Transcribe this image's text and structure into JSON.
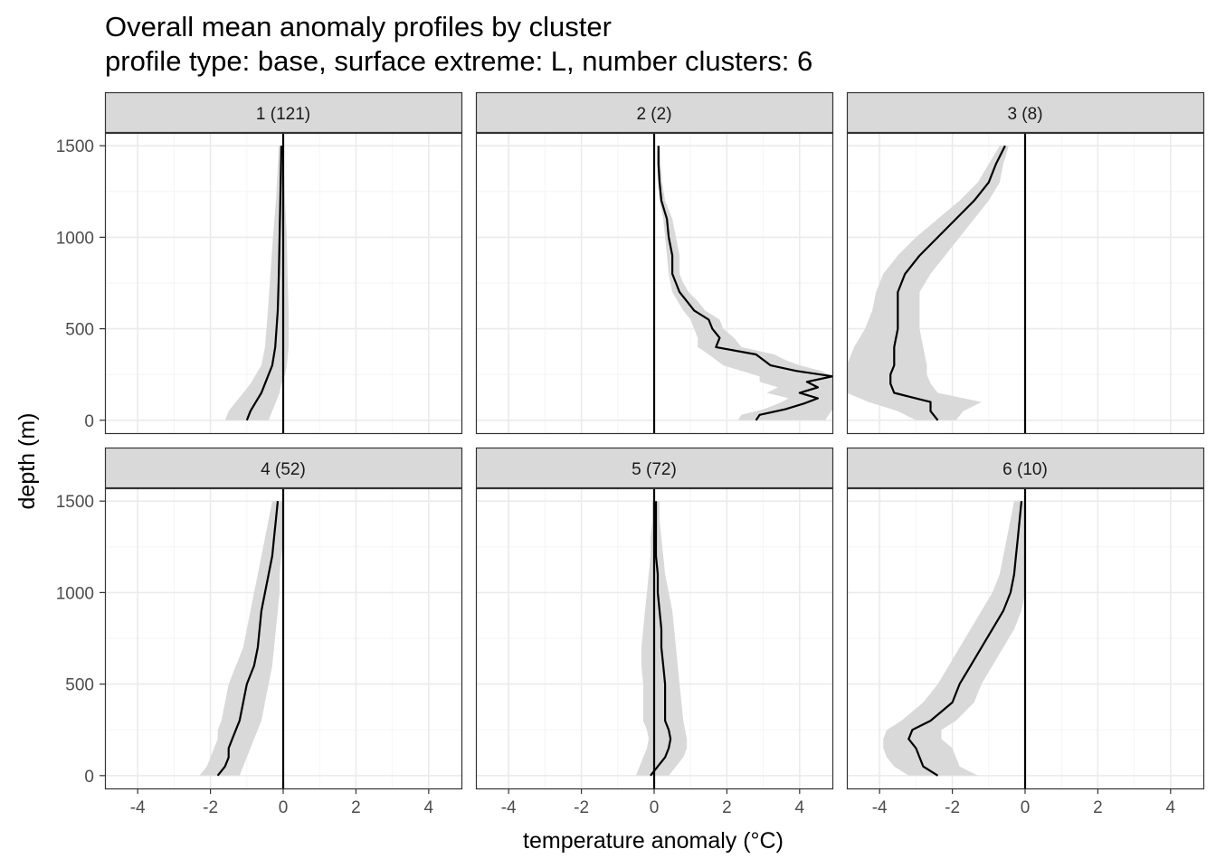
{
  "chart_data": {
    "type": "line",
    "title": "Overall mean anomaly profiles by cluster",
    "subtitle": "profile type: base, surface extreme: L, number clusters: 6",
    "xlabel": "temperature anomaly (°C)",
    "ylabel": "depth (m)",
    "xlim": [
      -4.9,
      4.9
    ],
    "ylim": [
      1570,
      -70
    ],
    "x_reversed": false,
    "y_reversed": true,
    "x_ticks": [
      -4,
      -2,
      0,
      2,
      4
    ],
    "x_tick_labels": [
      "-4",
      "-2",
      "0",
      "2",
      "4"
    ],
    "y_ticks": [
      0,
      500,
      1000,
      1500
    ],
    "y_tick_labels": [
      "0",
      "500",
      "1000",
      "1500"
    ],
    "grid": true,
    "vline_x": 0,
    "colors": {
      "line": "#000000",
      "ribbon": "#d9d9d9",
      "strip": "#d9d9d9",
      "grid_major": "#ebebeb",
      "grid_minor": "#f5f5f5",
      "border": "#333333"
    },
    "panels": [
      {
        "label": "1 (121)",
        "depth": [
          0,
          50,
          100,
          150,
          200,
          250,
          300,
          400,
          600,
          800,
          1000,
          1200,
          1500
        ],
        "mean": [
          -1.0,
          -0.9,
          -0.75,
          -0.6,
          -0.5,
          -0.4,
          -0.3,
          -0.22,
          -0.15,
          -0.12,
          -0.1,
          -0.08,
          -0.05
        ],
        "lower": [
          -1.6,
          -1.5,
          -1.3,
          -1.1,
          -0.9,
          -0.75,
          -0.6,
          -0.5,
          -0.42,
          -0.35,
          -0.28,
          -0.2,
          -0.12
        ],
        "upper": [
          -0.4,
          -0.3,
          -0.2,
          -0.1,
          -0.05,
          0.05,
          0.1,
          0.15,
          0.15,
          0.12,
          0.1,
          0.05,
          0.0
        ]
      },
      {
        "label": "2 (2)",
        "depth": [
          0,
          30,
          60,
          90,
          120,
          150,
          180,
          210,
          240,
          270,
          300,
          330,
          360,
          400,
          450,
          500,
          550,
          600,
          650,
          700,
          750,
          800,
          900,
          1000,
          1100,
          1200,
          1300,
          1400,
          1500
        ],
        "mean": [
          2.8,
          2.9,
          3.6,
          4.1,
          4.5,
          4.0,
          4.5,
          4.2,
          4.9,
          3.9,
          3.2,
          3.0,
          2.8,
          1.7,
          1.8,
          1.6,
          1.5,
          1.1,
          0.9,
          0.7,
          0.6,
          0.5,
          0.5,
          0.4,
          0.35,
          0.2,
          0.15,
          0.12,
          0.12
        ],
        "lower": [
          2.3,
          2.4,
          3.0,
          3.4,
          3.7,
          3.1,
          3.4,
          2.9,
          2.9,
          2.4,
          1.9,
          1.7,
          1.5,
          1.2,
          1.2,
          1.1,
          1.0,
          0.8,
          0.65,
          0.5,
          0.45,
          0.4,
          0.35,
          0.3,
          0.25,
          0.15,
          0.1,
          0.08,
          0.08
        ],
        "upper": [
          4.7,
          4.8,
          4.9,
          4.9,
          4.9,
          4.9,
          4.9,
          4.9,
          4.9,
          4.6,
          4.0,
          3.6,
          3.3,
          2.4,
          2.2,
          1.9,
          1.8,
          1.4,
          1.2,
          0.95,
          0.8,
          0.7,
          0.7,
          0.6,
          0.5,
          0.3,
          0.22,
          0.18,
          0.16
        ]
      },
      {
        "label": "3 (8)",
        "depth": [
          0,
          50,
          100,
          150,
          200,
          250,
          300,
          400,
          500,
          600,
          700,
          800,
          900,
          1000,
          1100,
          1200,
          1300,
          1400,
          1500
        ],
        "mean": [
          -2.4,
          -2.6,
          -2.6,
          -3.6,
          -3.7,
          -3.7,
          -3.6,
          -3.6,
          -3.5,
          -3.5,
          -3.5,
          -3.3,
          -2.9,
          -2.4,
          -1.9,
          -1.4,
          -1.0,
          -0.8,
          -0.55
        ],
        "lower": [
          -3.0,
          -3.5,
          -4.3,
          -4.9,
          -4.9,
          -4.9,
          -4.9,
          -4.7,
          -4.4,
          -4.2,
          -4.1,
          -3.9,
          -3.5,
          -3.0,
          -2.4,
          -1.8,
          -1.3,
          -1.0,
          -0.7
        ],
        "upper": [
          -1.9,
          -1.7,
          -1.2,
          -2.4,
          -2.6,
          -2.7,
          -2.7,
          -2.8,
          -2.9,
          -2.9,
          -2.9,
          -2.6,
          -2.2,
          -1.8,
          -1.4,
          -1.0,
          -0.7,
          -0.6,
          -0.45
        ]
      },
      {
        "label": "4 (52)",
        "depth": [
          0,
          50,
          100,
          150,
          200,
          250,
          300,
          400,
          500,
          600,
          700,
          800,
          900,
          1000,
          1100,
          1200,
          1300,
          1400,
          1500
        ],
        "mean": [
          -1.8,
          -1.6,
          -1.5,
          -1.5,
          -1.4,
          -1.3,
          -1.2,
          -1.1,
          -1.0,
          -0.8,
          -0.7,
          -0.65,
          -0.6,
          -0.5,
          -0.4,
          -0.3,
          -0.25,
          -0.2,
          -0.15
        ],
        "lower": [
          -2.3,
          -2.1,
          -2.0,
          -1.9,
          -1.8,
          -1.8,
          -1.7,
          -1.6,
          -1.5,
          -1.3,
          -1.1,
          -1.0,
          -0.9,
          -0.8,
          -0.7,
          -0.6,
          -0.5,
          -0.4,
          -0.3
        ],
        "upper": [
          -1.2,
          -1.1,
          -1.0,
          -0.9,
          -0.8,
          -0.7,
          -0.6,
          -0.5,
          -0.4,
          -0.3,
          -0.25,
          -0.2,
          -0.15,
          -0.1,
          -0.1,
          -0.05,
          0.0,
          0.0,
          0.0
        ]
      },
      {
        "label": "5 (72)",
        "depth": [
          0,
          50,
          100,
          150,
          200,
          250,
          300,
          400,
          500,
          600,
          700,
          800,
          900,
          1000,
          1100,
          1200,
          1300,
          1400,
          1500
        ],
        "mean": [
          -0.1,
          0.1,
          0.3,
          0.4,
          0.45,
          0.4,
          0.3,
          0.3,
          0.3,
          0.25,
          0.2,
          0.2,
          0.15,
          0.1,
          0.1,
          0.05,
          0.05,
          0.05,
          0.05
        ],
        "lower": [
          -0.5,
          -0.4,
          -0.3,
          -0.2,
          -0.15,
          -0.2,
          -0.3,
          -0.3,
          -0.3,
          -0.35,
          -0.35,
          -0.3,
          -0.25,
          -0.2,
          -0.15,
          -0.1,
          -0.1,
          -0.05,
          -0.05
        ],
        "upper": [
          0.4,
          0.6,
          0.8,
          0.9,
          0.9,
          0.85,
          0.8,
          0.75,
          0.7,
          0.65,
          0.6,
          0.55,
          0.5,
          0.4,
          0.3,
          0.25,
          0.2,
          0.15,
          0.15
        ]
      },
      {
        "label": "6 (10)",
        "depth": [
          0,
          50,
          100,
          150,
          200,
          250,
          300,
          400,
          500,
          600,
          700,
          800,
          900,
          1000,
          1100,
          1200,
          1300,
          1400,
          1500
        ],
        "mean": [
          -2.4,
          -2.8,
          -2.9,
          -3.0,
          -3.2,
          -3.1,
          -2.6,
          -2.0,
          -1.8,
          -1.5,
          -1.2,
          -0.9,
          -0.6,
          -0.4,
          -0.3,
          -0.25,
          -0.2,
          -0.15,
          -0.1
        ],
        "lower": [
          -3.2,
          -3.6,
          -3.8,
          -3.9,
          -3.9,
          -3.8,
          -3.4,
          -2.8,
          -2.4,
          -2.1,
          -1.8,
          -1.5,
          -1.2,
          -0.9,
          -0.7,
          -0.6,
          -0.5,
          -0.4,
          -0.3
        ],
        "upper": [
          -1.3,
          -1.8,
          -1.9,
          -2.0,
          -2.3,
          -2.3,
          -1.9,
          -1.4,
          -1.2,
          -0.9,
          -0.6,
          -0.3,
          -0.1,
          0.0,
          0.0,
          0.0,
          0.0,
          0.0,
          0.0
        ]
      }
    ]
  }
}
